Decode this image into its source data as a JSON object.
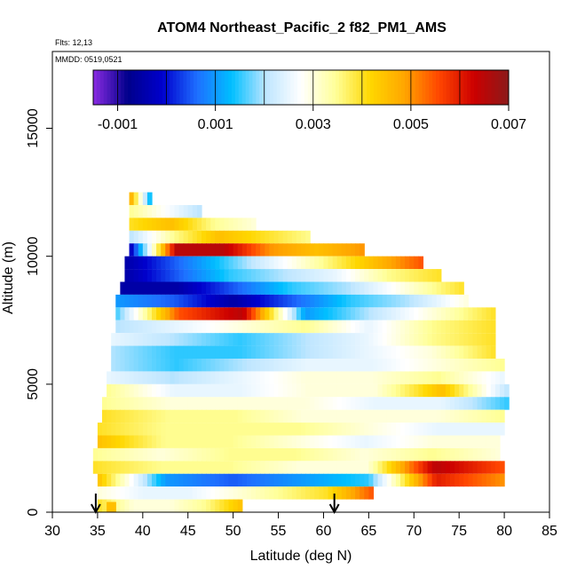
{
  "chart_data": {
    "type": "heatmap",
    "title": "ATOM4 Northeast_Pacific_2 f82_PM1_AMS",
    "flights_label": "Flts: 12,13",
    "date_label": "MMDD: 0519,0521",
    "xlabel": "Latitude (deg N)",
    "ylabel": "Altitude (m)",
    "xlim": [
      30,
      85
    ],
    "ylim": [
      0,
      18000
    ],
    "xticks": [
      "30",
      "35",
      "40",
      "45",
      "50",
      "55",
      "60",
      "65",
      "70",
      "75",
      "80",
      "85"
    ],
    "yticks": [
      "0",
      "5000",
      "10000",
      "15000"
    ],
    "colorbar": {
      "range": [
        -0.0015,
        0.007
      ],
      "tick_values": [
        -0.001,
        0.001,
        0.003,
        0.005,
        0.007
      ],
      "tick_labels": [
        "-0.001",
        "0.001",
        "0.003",
        "0.005",
        "0.007"
      ],
      "colors": [
        "#8a2be2",
        "#00008b",
        "#0000cd",
        "#1e6fff",
        "#00bfff",
        "#bfe6ff",
        "#ffffff",
        "#ffff99",
        "#ffd700",
        "#ffa500",
        "#ff4500",
        "#cc0000",
        "#8b1a1a"
      ]
    },
    "layers": [
      {
        "alt_min": 12000,
        "alt_max": 12500,
        "lat_min": 38.5,
        "lat_max": 41,
        "values": [
          0.005,
          0.001
        ]
      },
      {
        "alt_min": 11500,
        "alt_max": 12000,
        "lat_min": 38.5,
        "lat_max": 46.5,
        "values": [
          0.0035,
          0.002
        ]
      },
      {
        "alt_min": 11000,
        "alt_max": 11500,
        "lat_min": 38.5,
        "lat_max": 52.5,
        "values": [
          0.004,
          0.0045,
          0.0035,
          0.003
        ]
      },
      {
        "alt_min": 10500,
        "alt_max": 11000,
        "lat_min": 38.5,
        "lat_max": 58.5,
        "values": [
          0.002,
          0.0035,
          0.0045,
          0.004,
          0.0035
        ]
      },
      {
        "alt_min": 10000,
        "alt_max": 10500,
        "lat_min": 38.5,
        "lat_max": 64.5,
        "values": [
          -0.0005,
          0.0065,
          0.0065,
          0.005,
          0.0045,
          0.005
        ]
      },
      {
        "alt_min": 9500,
        "alt_max": 10000,
        "lat_min": 38,
        "lat_max": 71,
        "values": [
          -0.0005,
          0.0005,
          0.0015,
          0.0025,
          0.0035,
          0.0045,
          0.0055
        ]
      },
      {
        "alt_min": 9000,
        "alt_max": 9500,
        "lat_min": 38,
        "lat_max": 73,
        "values": [
          -0.0005,
          0.0005,
          0.0015,
          0.002,
          0.0025,
          0.0035,
          0.004
        ]
      },
      {
        "alt_min": 8500,
        "alt_max": 9000,
        "lat_min": 37.5,
        "lat_max": 75.5,
        "values": [
          -0.0005,
          -0.0005,
          0.0005,
          0.0015,
          0.002,
          0.003,
          0.004
        ]
      },
      {
        "alt_min": 8000,
        "alt_max": 8500,
        "lat_min": 37,
        "lat_max": 76,
        "values": [
          0.001,
          0.0005,
          -0.0005,
          0.0005,
          0.0015,
          0.002,
          0.003
        ]
      },
      {
        "alt_min": 7500,
        "alt_max": 8000,
        "lat_min": 37,
        "lat_max": 79,
        "values": [
          0.0015,
          0.0055,
          0.0065,
          0.001,
          0.002,
          0.003,
          0.004
        ]
      },
      {
        "alt_min": 7000,
        "alt_max": 7500,
        "lat_min": 37,
        "lat_max": 79,
        "values": [
          0.002,
          0.0025,
          0.003,
          0.0035,
          0.0025,
          0.0035,
          0.004
        ]
      },
      {
        "alt_min": 6500,
        "alt_max": 7000,
        "lat_min": 36.5,
        "lat_max": 79,
        "values": [
          0.0025,
          0.002,
          0.0015,
          0.002,
          0.0025,
          0.0035,
          0.004
        ]
      },
      {
        "alt_min": 6000,
        "alt_max": 6500,
        "lat_min": 36.5,
        "lat_max": 79,
        "values": [
          0.002,
          0.0015,
          0.0015,
          0.002,
          0.0025,
          0.003,
          0.004
        ]
      },
      {
        "alt_min": 5500,
        "alt_max": 6000,
        "lat_min": 36.5,
        "lat_max": 80,
        "values": [
          0.002,
          0.0015,
          0.002,
          0.0025,
          0.0025,
          0.003,
          0.0035
        ]
      },
      {
        "alt_min": 5000,
        "alt_max": 5500,
        "lat_min": 36,
        "lat_max": 80,
        "values": [
          0.0025,
          0.002,
          0.0025,
          0.003,
          0.003,
          0.0035,
          0.0025
        ]
      },
      {
        "alt_min": 4500,
        "alt_max": 5000,
        "lat_min": 36,
        "lat_max": 80.5,
        "values": [
          0.0035,
          0.0025,
          0.0025,
          0.003,
          0.003,
          0.0045,
          0.002
        ]
      },
      {
        "alt_min": 4000,
        "alt_max": 4500,
        "lat_min": 35.5,
        "lat_max": 80.5,
        "values": [
          0.0035,
          0.003,
          0.003,
          0.003,
          0.0025,
          0.0025,
          0.0015
        ]
      },
      {
        "alt_min": 3500,
        "alt_max": 4000,
        "lat_min": 35.5,
        "lat_max": 80,
        "values": [
          0.004,
          0.0035,
          0.0035,
          0.003,
          0.003,
          0.003,
          0.0035
        ]
      },
      {
        "alt_min": 3000,
        "alt_max": 3500,
        "lat_min": 35,
        "lat_max": 80,
        "values": [
          0.004,
          0.0035,
          0.0035,
          0.0035,
          0.003,
          0.0025,
          0.0025
        ]
      },
      {
        "alt_min": 2500,
        "alt_max": 3000,
        "lat_min": 35,
        "lat_max": 79.5,
        "values": [
          0.0045,
          0.0035,
          0.0035,
          0.003,
          0.0025,
          0.003,
          0.003
        ]
      },
      {
        "alt_min": 2000,
        "alt_max": 2500,
        "lat_min": 34.5,
        "lat_max": 79.5,
        "values": [
          0.0035,
          0.003,
          0.0035,
          0.0035,
          0.003,
          0.0035,
          0.003
        ]
      },
      {
        "alt_min": 1500,
        "alt_max": 2000,
        "lat_min": 34.5,
        "lat_max": 80,
        "values": [
          0.004,
          0.0035,
          0.0035,
          0.003,
          0.003,
          0.0065,
          0.0055
        ]
      },
      {
        "alt_min": 1000,
        "alt_max": 1500,
        "lat_min": 35,
        "lat_max": 80,
        "values": [
          0.0045,
          0.001,
          0.0005,
          0.001,
          0.0015,
          0.006,
          0.005
        ]
      },
      {
        "alt_min": 500,
        "alt_max": 1000,
        "lat_min": 35,
        "lat_max": 65.5,
        "values": [
          0.003,
          0.0025,
          0.0025,
          0.003,
          0.0035,
          0.004,
          0.0055
        ]
      },
      {
        "alt_min": 0,
        "alt_max": 500,
        "lat_min": 35,
        "lat_max": 51,
        "values": [
          0.004,
          0.003,
          0.003,
          0.0035,
          0.0045
        ]
      },
      {
        "alt_min": 0,
        "alt_max": 400,
        "lat_min": 36,
        "lat_max": 37,
        "values": [
          0.0045
        ]
      }
    ],
    "markers": [
      {
        "type": "arrow-down",
        "latitude": 34.8,
        "label": ""
      },
      {
        "type": "arrow-down",
        "latitude": 61.2,
        "label": ""
      }
    ]
  }
}
